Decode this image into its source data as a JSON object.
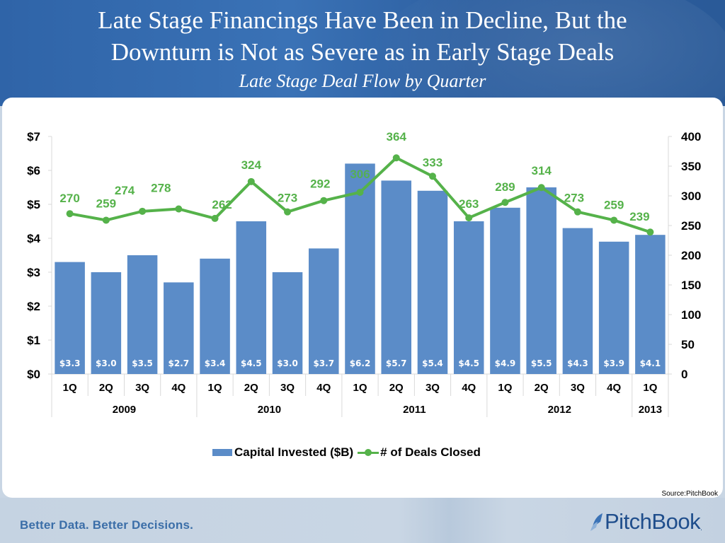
{
  "header": {
    "title_line1": "Late Stage Financings Have Been in Decline, But the",
    "title_line2": "Downturn is Not as Severe as in Early Stage Deals",
    "subtitle": "Late Stage Deal Flow by Quarter"
  },
  "footer": {
    "source": "Source:PitchBook",
    "tagline": "Better Data. Better Decisions.",
    "logo_text": "PitchBook",
    "logo_icon": "pitchbook-swoosh-icon"
  },
  "legend": {
    "bar_label": "Capital Invested ($B)",
    "line_label": "# of Deals Closed"
  },
  "colors": {
    "bar": "#5b8cc8",
    "line": "#55b24a",
    "header_blue": "#3a72b6"
  },
  "chart_data": {
    "type": "bar+line",
    "title": "Late Stage Deal Flow by Quarter",
    "categories": [
      "1Q",
      "2Q",
      "3Q",
      "4Q",
      "1Q",
      "2Q",
      "3Q",
      "4Q",
      "1Q",
      "2Q",
      "3Q",
      "4Q",
      "1Q",
      "2Q",
      "3Q",
      "4Q",
      "1Q"
    ],
    "year_groups": [
      {
        "label": "2009",
        "span": 4
      },
      {
        "label": "2010",
        "span": 4
      },
      {
        "label": "2011",
        "span": 4
      },
      {
        "label": "2012",
        "span": 4
      },
      {
        "label": "2013",
        "span": 1
      }
    ],
    "series": [
      {
        "name": "Capital Invested ($B)",
        "type": "bar",
        "axis": "left",
        "values": [
          3.3,
          3.0,
          3.5,
          2.7,
          3.4,
          4.5,
          3.0,
          3.7,
          6.2,
          5.7,
          5.4,
          4.5,
          4.9,
          5.5,
          4.3,
          3.9,
          4.1
        ],
        "labels": [
          "$3.3",
          "$3.0",
          "$3.5",
          "$2.7",
          "$3.4",
          "$4.5",
          "$3.0",
          "$3.7",
          "$6.2",
          "$5.7",
          "$5.4",
          "$4.5",
          "$4.9",
          "$5.5",
          "$4.3",
          "$3.9",
          "$4.1"
        ]
      },
      {
        "name": "# of Deals Closed",
        "type": "line",
        "axis": "right",
        "values": [
          270,
          259,
          274,
          278,
          262,
          324,
          273,
          292,
          306,
          364,
          333,
          263,
          289,
          314,
          273,
          259,
          239
        ]
      }
    ],
    "left_axis": {
      "ylim": [
        0,
        7
      ],
      "ticks": [
        "$0",
        "$1",
        "$2",
        "$3",
        "$4",
        "$5",
        "$6",
        "$7"
      ]
    },
    "right_axis": {
      "ylim": [
        0,
        400
      ],
      "ticks": [
        "0",
        "50",
        "100",
        "150",
        "200",
        "250",
        "300",
        "350",
        "400"
      ]
    },
    "grid": false,
    "legend_position": "bottom"
  }
}
